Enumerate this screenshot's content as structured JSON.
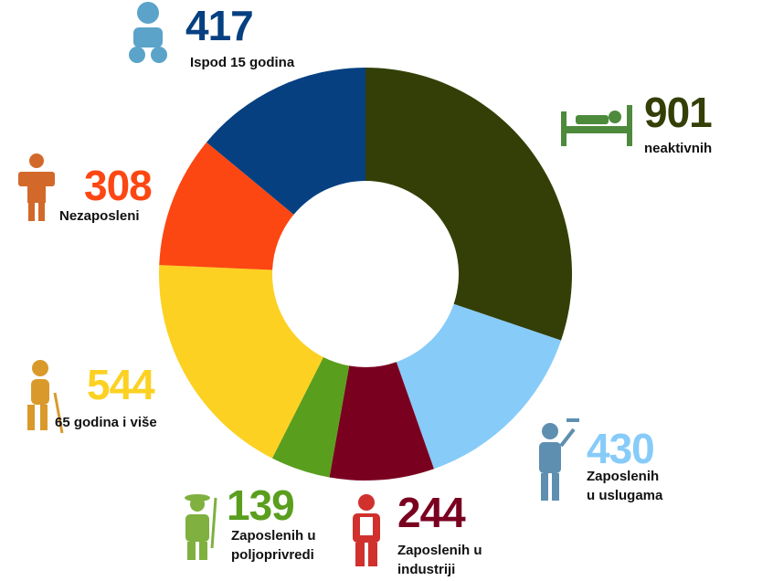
{
  "chart_data": {
    "type": "donut",
    "categories": [
      "neaktivnih",
      "Zaposlenih u uslugama",
      "Zaposlenih u industriji",
      "Zaposlenih u poljoprivredi",
      "65 godina i više",
      "Nezaposleni",
      "Ispod 15 godina"
    ],
    "values": [
      901,
      430,
      244,
      139,
      544,
      308,
      417
    ],
    "colors": [
      "#333f06",
      "#87cbf9",
      "#7a0020",
      "#5a9e1e",
      "#fcd122",
      "#fc4713",
      "#064081"
    ]
  }
}
